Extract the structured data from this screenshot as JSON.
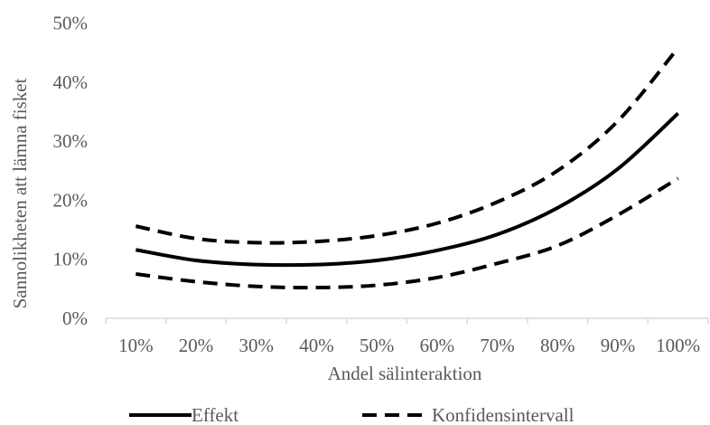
{
  "chart_data": {
    "type": "line",
    "title": "",
    "xlabel": "Andel sälinteraktion",
    "ylabel": "Sannolikheten att lämna fisket",
    "categories": [
      "10%",
      "20%",
      "30%",
      "40%",
      "50%",
      "60%",
      "70%",
      "80%",
      "90%",
      "100%"
    ],
    "y_ticks": [
      "0%",
      "10%",
      "20%",
      "30%",
      "40%",
      "50%"
    ],
    "ylim": [
      0,
      50
    ],
    "grid": false,
    "legend_position": "bottom",
    "series": [
      {
        "name": "Effekt",
        "style": "solid",
        "color": "#000000",
        "values": [
          11.6,
          9.8,
          9.1,
          9.1,
          9.8,
          11.5,
          14.2,
          18.7,
          25.3,
          34.7
        ]
      },
      {
        "name": "Konfidensintervall",
        "style": "dashed",
        "color": "#000000",
        "values": [
          15.6,
          13.5,
          12.8,
          13.0,
          14.0,
          16.1,
          19.7,
          25.0,
          33.4,
          45.8
        ]
      },
      {
        "name": "Konfidensintervall",
        "style": "dashed",
        "color": "#000000",
        "values": [
          7.5,
          6.2,
          5.4,
          5.2,
          5.6,
          6.9,
          9.3,
          12.3,
          17.5,
          23.7
        ]
      }
    ],
    "legend": [
      {
        "label": "Effekt",
        "style": "solid"
      },
      {
        "label": "Konfidensintervall",
        "style": "dashed"
      }
    ]
  }
}
